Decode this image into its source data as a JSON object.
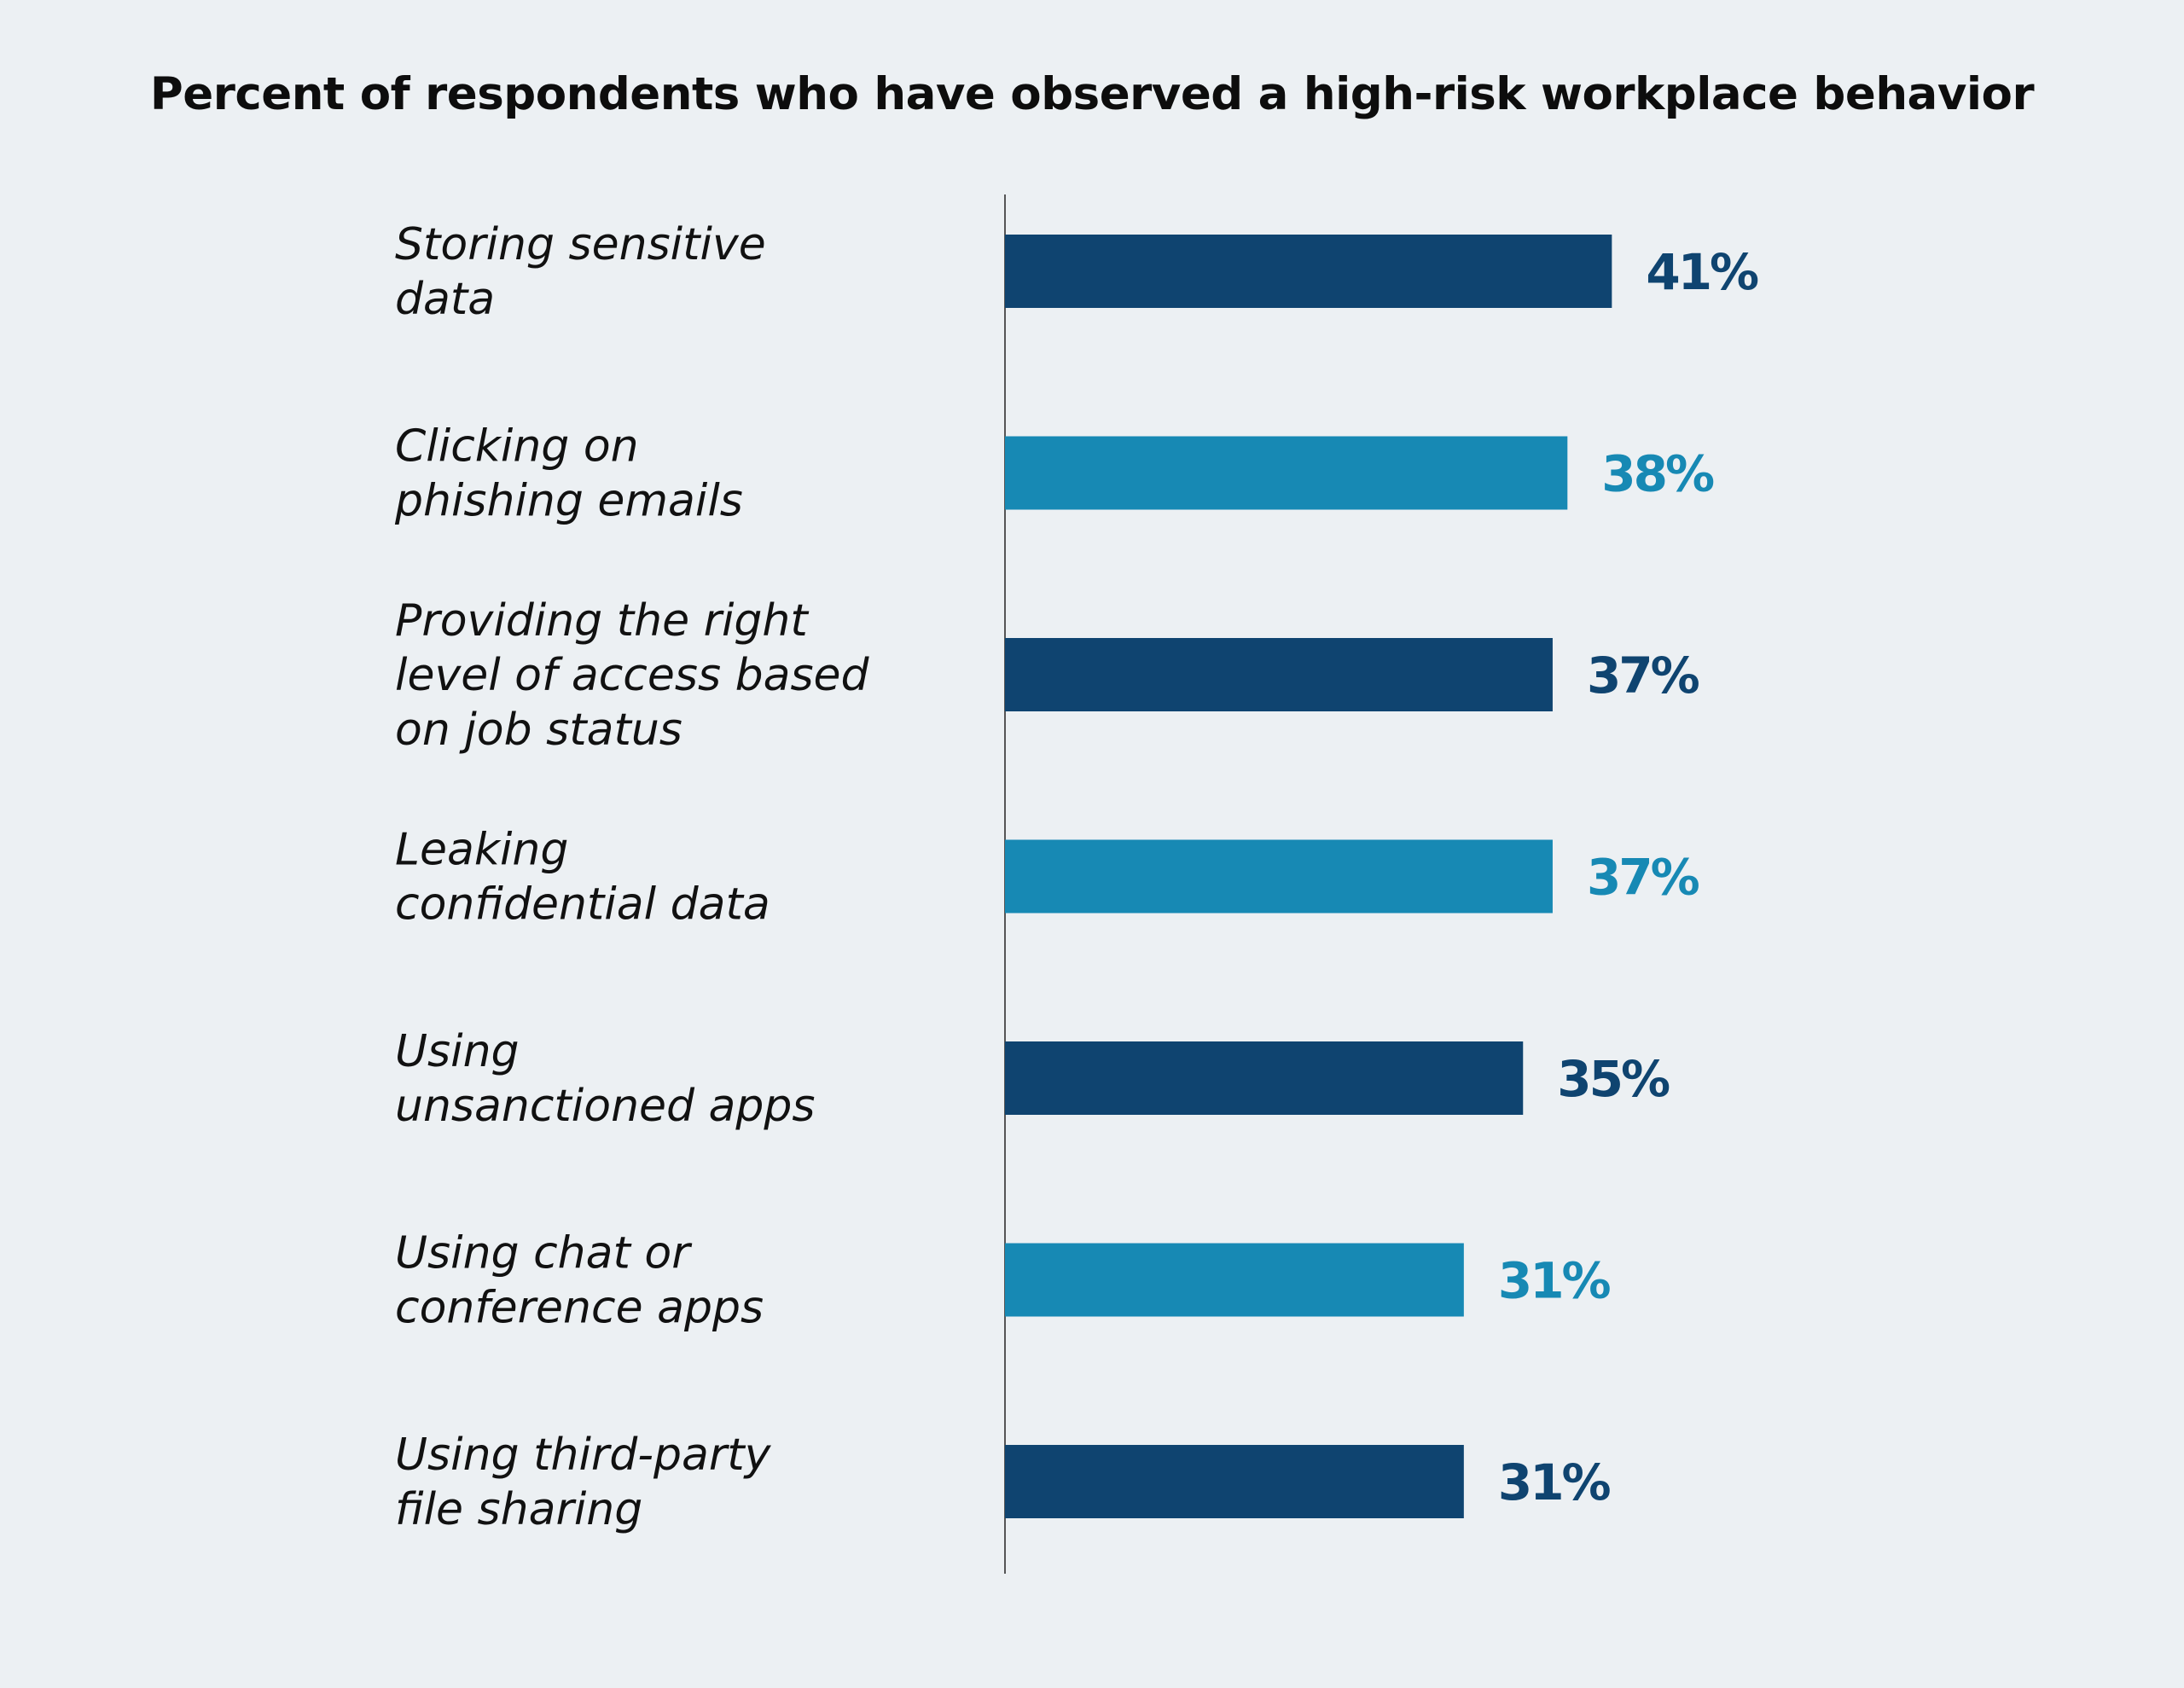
{
  "chart_data": {
    "type": "bar",
    "orientation": "horizontal",
    "title": "Percent of respondents who have observed a high-risk workplace behavior",
    "categories": [
      [
        "Storing sensitive",
        "data"
      ],
      [
        "Clicking on",
        "phishing emails"
      ],
      [
        "Providing the right",
        "level of access based",
        "on job status"
      ],
      [
        "Leaking",
        "confidential data"
      ],
      [
        "Using",
        "unsanctioned apps"
      ],
      [
        "Using chat or",
        "conference apps"
      ],
      [
        "Using third-party",
        "file sharing"
      ]
    ],
    "values": [
      41,
      38,
      37,
      37,
      35,
      31,
      31
    ],
    "value_labels": [
      "41%",
      "38%",
      "37%",
      "37%",
      "35%",
      "31%",
      "31%"
    ],
    "unit": "%",
    "xlim": [
      0,
      100
    ],
    "grid": false,
    "legend": "none",
    "bar_colors": [
      "#0f4470",
      "#1789b4",
      "#0f4470",
      "#1789b4",
      "#0f4470",
      "#1789b4",
      "#0f4470"
    ]
  },
  "colors": {
    "background": "#ecf0f3",
    "axis": "#555555",
    "label_text": "#111111",
    "title_text": "#0d0d0d"
  }
}
